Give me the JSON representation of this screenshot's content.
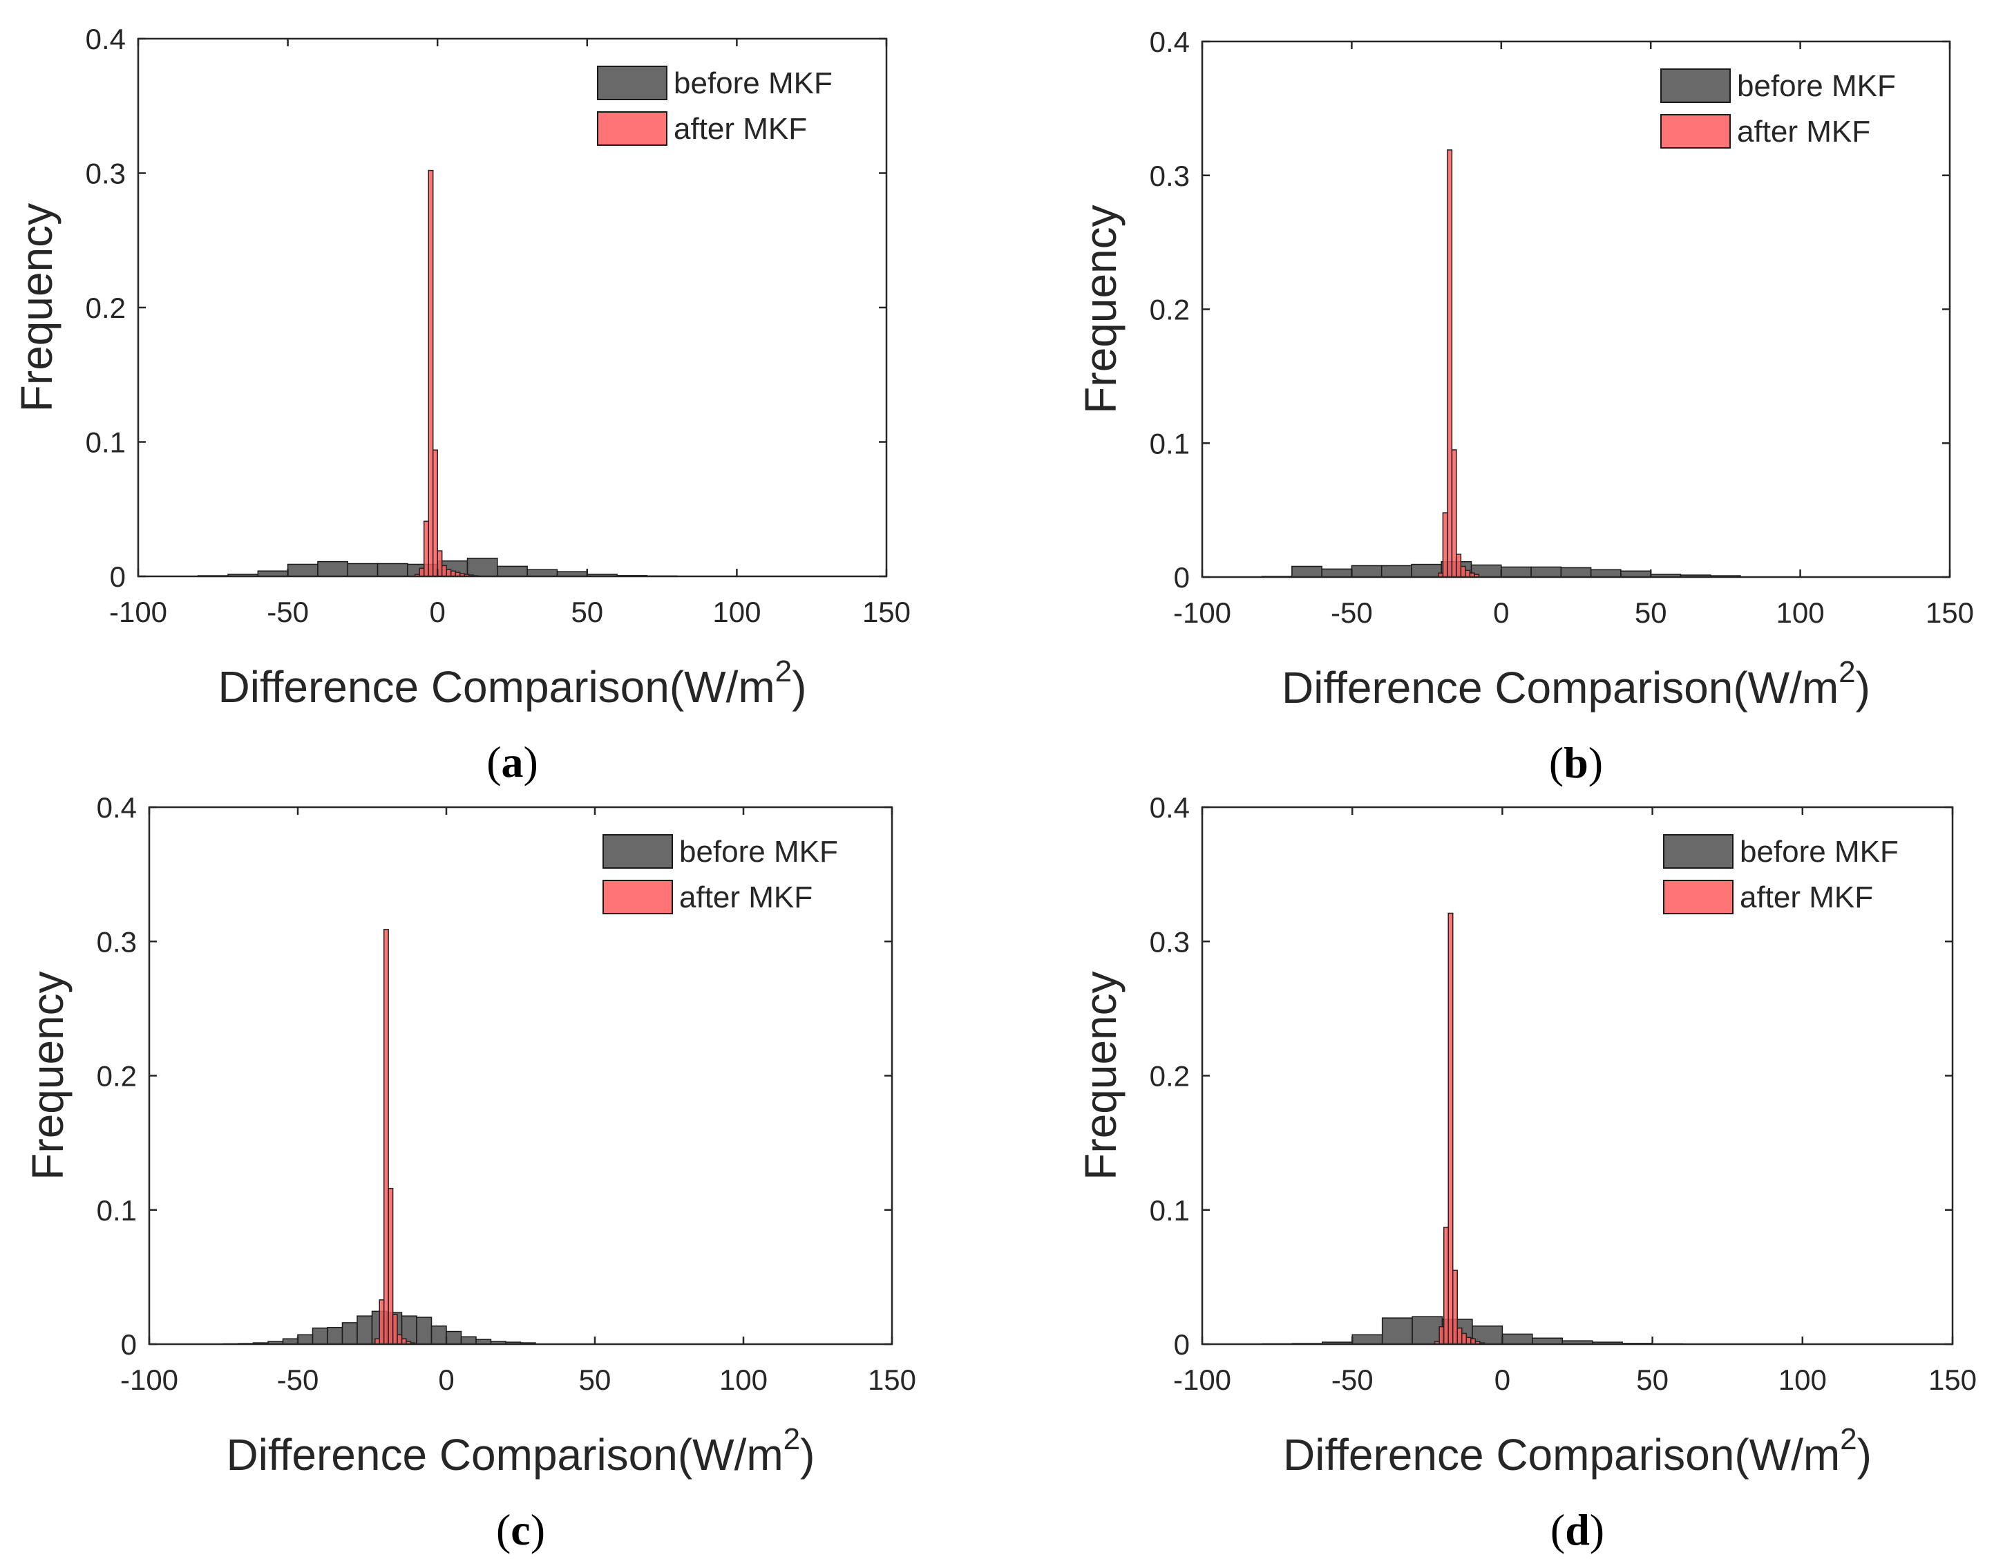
{
  "figure": {
    "font_family": "Liberation Sans"
  },
  "colors": {
    "before": "#595959",
    "after": "#ff5c5c",
    "axis": "#262626"
  },
  "chart_data": [
    {
      "type": "bar",
      "panel": "(a)",
      "xlabel": "Difference Comparison(W/m",
      "xlabel_sup": "2",
      "xlabel_close": ")",
      "ylabel": "Frequency",
      "xlim": [
        -100,
        150
      ],
      "ylim": [
        0,
        0.4
      ],
      "xticks": [
        "-100",
        "-50",
        "0",
        "50",
        "100",
        "150"
      ],
      "yticks": [
        "0",
        "0.1",
        "0.2",
        "0.3",
        "0.4"
      ],
      "legend_position": "top-right",
      "series": [
        {
          "name": "before MKF",
          "bin_width": 10,
          "bin_starts": [
            -80,
            -70,
            -60,
            -50,
            -40,
            -30,
            -20,
            -10,
            0,
            10,
            20,
            30,
            40,
            50,
            60,
            70
          ],
          "values": [
            0.0005,
            0.0015,
            0.004,
            0.009,
            0.011,
            0.0095,
            0.0095,
            0.009,
            0.0115,
            0.0135,
            0.0075,
            0.005,
            0.0035,
            0.0015,
            0.0006,
            0.0003
          ]
        },
        {
          "name": "after MKF",
          "bin_width": 1.5,
          "bin_starts": [
            -7.5,
            -6,
            -4.5,
            -3,
            -1.5,
            0,
            1.5,
            3,
            4.5,
            6,
            7.5,
            9,
            10.5,
            12
          ],
          "values": [
            0.0015,
            0.006,
            0.041,
            0.302,
            0.094,
            0.019,
            0.008,
            0.005,
            0.004,
            0.003,
            0.002,
            0.0015,
            0.001,
            0.0005
          ]
        }
      ]
    },
    {
      "type": "bar",
      "panel": "(b)",
      "xlabel": "Difference Comparison(W/m",
      "xlabel_sup": "2",
      "xlabel_close": ")",
      "ylabel": "Frequency",
      "xlim": [
        -100,
        150
      ],
      "ylim": [
        0,
        0.4
      ],
      "xticks": [
        "-100",
        "-50",
        "0",
        "50",
        "100",
        "150"
      ],
      "yticks": [
        "0",
        "0.1",
        "0.2",
        "0.3",
        "0.4"
      ],
      "legend_position": "top-right",
      "series": [
        {
          "name": "before MKF",
          "bin_width": 10,
          "bin_starts": [
            -80,
            -70,
            -60,
            -50,
            -40,
            -30,
            -20,
            -10,
            0,
            10,
            20,
            30,
            40,
            50,
            60,
            70
          ],
          "values": [
            0.0005,
            0.008,
            0.006,
            0.0085,
            0.0085,
            0.0095,
            0.0115,
            0.009,
            0.0075,
            0.0075,
            0.007,
            0.0055,
            0.0045,
            0.002,
            0.0015,
            0.001
          ]
        },
        {
          "name": "after MKF",
          "bin_width": 1.5,
          "bin_starts": [
            -21,
            -19.5,
            -18,
            -16.5,
            -15,
            -13.5,
            -12,
            -10.5,
            -9
          ],
          "values": [
            0.003,
            0.048,
            0.319,
            0.095,
            0.017,
            0.008,
            0.005,
            0.003,
            0.002
          ]
        }
      ]
    },
    {
      "type": "bar",
      "panel": "(c)",
      "xlabel": "Difference Comparison(W/m",
      "xlabel_sup": "2",
      "xlabel_close": ")",
      "ylabel": "Frequency",
      "xlim": [
        -100,
        150
      ],
      "ylim": [
        0,
        0.4
      ],
      "xticks": [
        "-100",
        "-50",
        "0",
        "50",
        "100",
        "150"
      ],
      "yticks": [
        "0",
        "0.1",
        "0.2",
        "0.3",
        "0.4"
      ],
      "legend_position": "top-right",
      "series": [
        {
          "name": "before MKF",
          "bin_width": 5,
          "bin_starts": [
            -75,
            -70,
            -65,
            -60,
            -55,
            -50,
            -45,
            -40,
            -35,
            -30,
            -25,
            -20,
            -15,
            -10,
            -5,
            0,
            5,
            10,
            15,
            20,
            25
          ],
          "values": [
            0.0003,
            0.0005,
            0.001,
            0.002,
            0.004,
            0.007,
            0.012,
            0.0125,
            0.016,
            0.021,
            0.0245,
            0.0235,
            0.021,
            0.02,
            0.0135,
            0.0095,
            0.0055,
            0.0035,
            0.002,
            0.0015,
            0.001
          ]
        },
        {
          "name": "after MKF",
          "bin_width": 1.5,
          "bin_starts": [
            -24,
            -22.5,
            -21,
            -19.5,
            -18,
            -16.5,
            -15,
            -13.5,
            -12
          ],
          "values": [
            0.004,
            0.033,
            0.309,
            0.116,
            0.022,
            0.007,
            0.004,
            0.002,
            0.001
          ]
        }
      ]
    },
    {
      "type": "bar",
      "panel": "(d)",
      "xlabel": "Difference Comparison(W/m",
      "xlabel_sup": "2",
      "xlabel_close": ")",
      "ylabel": "Frequency",
      "xlim": [
        -100,
        150
      ],
      "ylim": [
        0,
        0.4
      ],
      "xticks": [
        "-100",
        "-50",
        "0",
        "50",
        "100",
        "150"
      ],
      "yticks": [
        "0",
        "0.1",
        "0.2",
        "0.3",
        "0.4"
      ],
      "legend_position": "top-right",
      "series": [
        {
          "name": "before MKF",
          "bin_width": 10,
          "bin_starts": [
            -80,
            -70,
            -60,
            -50,
            -40,
            -30,
            -20,
            -10,
            0,
            10,
            20,
            30,
            40,
            50
          ],
          "values": [
            0.0003,
            0.0005,
            0.0015,
            0.007,
            0.0195,
            0.0205,
            0.0185,
            0.0135,
            0.0075,
            0.0045,
            0.0025,
            0.0015,
            0.0006,
            0.0003
          ]
        },
        {
          "name": "after MKF",
          "bin_width": 1.5,
          "bin_starts": [
            -22.5,
            -21,
            -19.5,
            -18,
            -16.5,
            -15,
            -13.5,
            -12,
            -10.5,
            -9,
            -7.5
          ],
          "values": [
            0.002,
            0.013,
            0.087,
            0.321,
            0.055,
            0.012,
            0.008,
            0.005,
            0.004,
            0.002,
            0.001
          ]
        }
      ]
    }
  ]
}
